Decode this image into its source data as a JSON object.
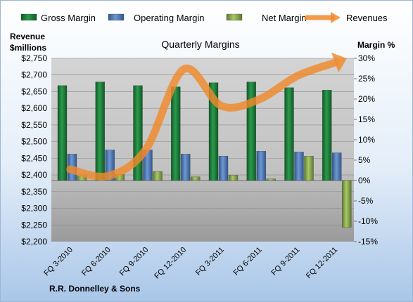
{
  "chart_data": {
    "type": "bar",
    "title": "Quarterly Margins",
    "footer": "R.R. Donnelley & Sons",
    "left_axis_title": [
      "Revenue",
      "$millions"
    ],
    "right_axis_title": "Margin %",
    "categories": [
      "FQ 3-2010",
      "FQ 6-2010",
      "FQ 9-2010",
      "FQ 12-2010",
      "FQ 3-2011",
      "FQ 6-2011",
      "FQ 9-2011",
      "FQ 12-2011"
    ],
    "left_axis": {
      "min": 2200,
      "max": 2750,
      "step": 50,
      "tick_labels": [
        "$2,200",
        "$2,250",
        "$2,300",
        "$2,350",
        "$2,400",
        "$2,450",
        "$2,500",
        "$2,550",
        "$2,600",
        "$2,650",
        "$2,700",
        "$2,750"
      ]
    },
    "right_axis": {
      "min": -15,
      "max": 30,
      "step": 5,
      "tick_labels": [
        "-15%",
        "-10%",
        "-5%",
        "0%",
        "5%",
        "10%",
        "15%",
        "20%",
        "25%",
        "30%"
      ]
    },
    "legend_position": "top",
    "series": [
      {
        "name": "Gross Margin",
        "type": "bar",
        "axis": "right",
        "color": "#1f7a3a",
        "values": [
          23.3,
          24.2,
          23.3,
          23.0,
          24.0,
          24.2,
          22.8,
          22.2
        ]
      },
      {
        "name": "Operating Margin",
        "type": "bar",
        "axis": "right",
        "color": "#4f7dbf",
        "values": [
          6.5,
          7.5,
          7.5,
          6.5,
          6.0,
          7.2,
          7.0,
          6.8
        ]
      },
      {
        "name": "Net Margin",
        "type": "bar",
        "axis": "right",
        "color": "#8fae4f",
        "values": [
          1.2,
          1.5,
          2.2,
          0.9,
          1.3,
          0.4,
          6.0,
          -11.5
        ]
      },
      {
        "name": "Revenues",
        "type": "line",
        "axis": "left",
        "color": "#f08a2c",
        "values": [
          2417,
          2397,
          2477,
          2717,
          2607,
          2627,
          2697,
          2737
        ]
      }
    ],
    "grid": true
  }
}
